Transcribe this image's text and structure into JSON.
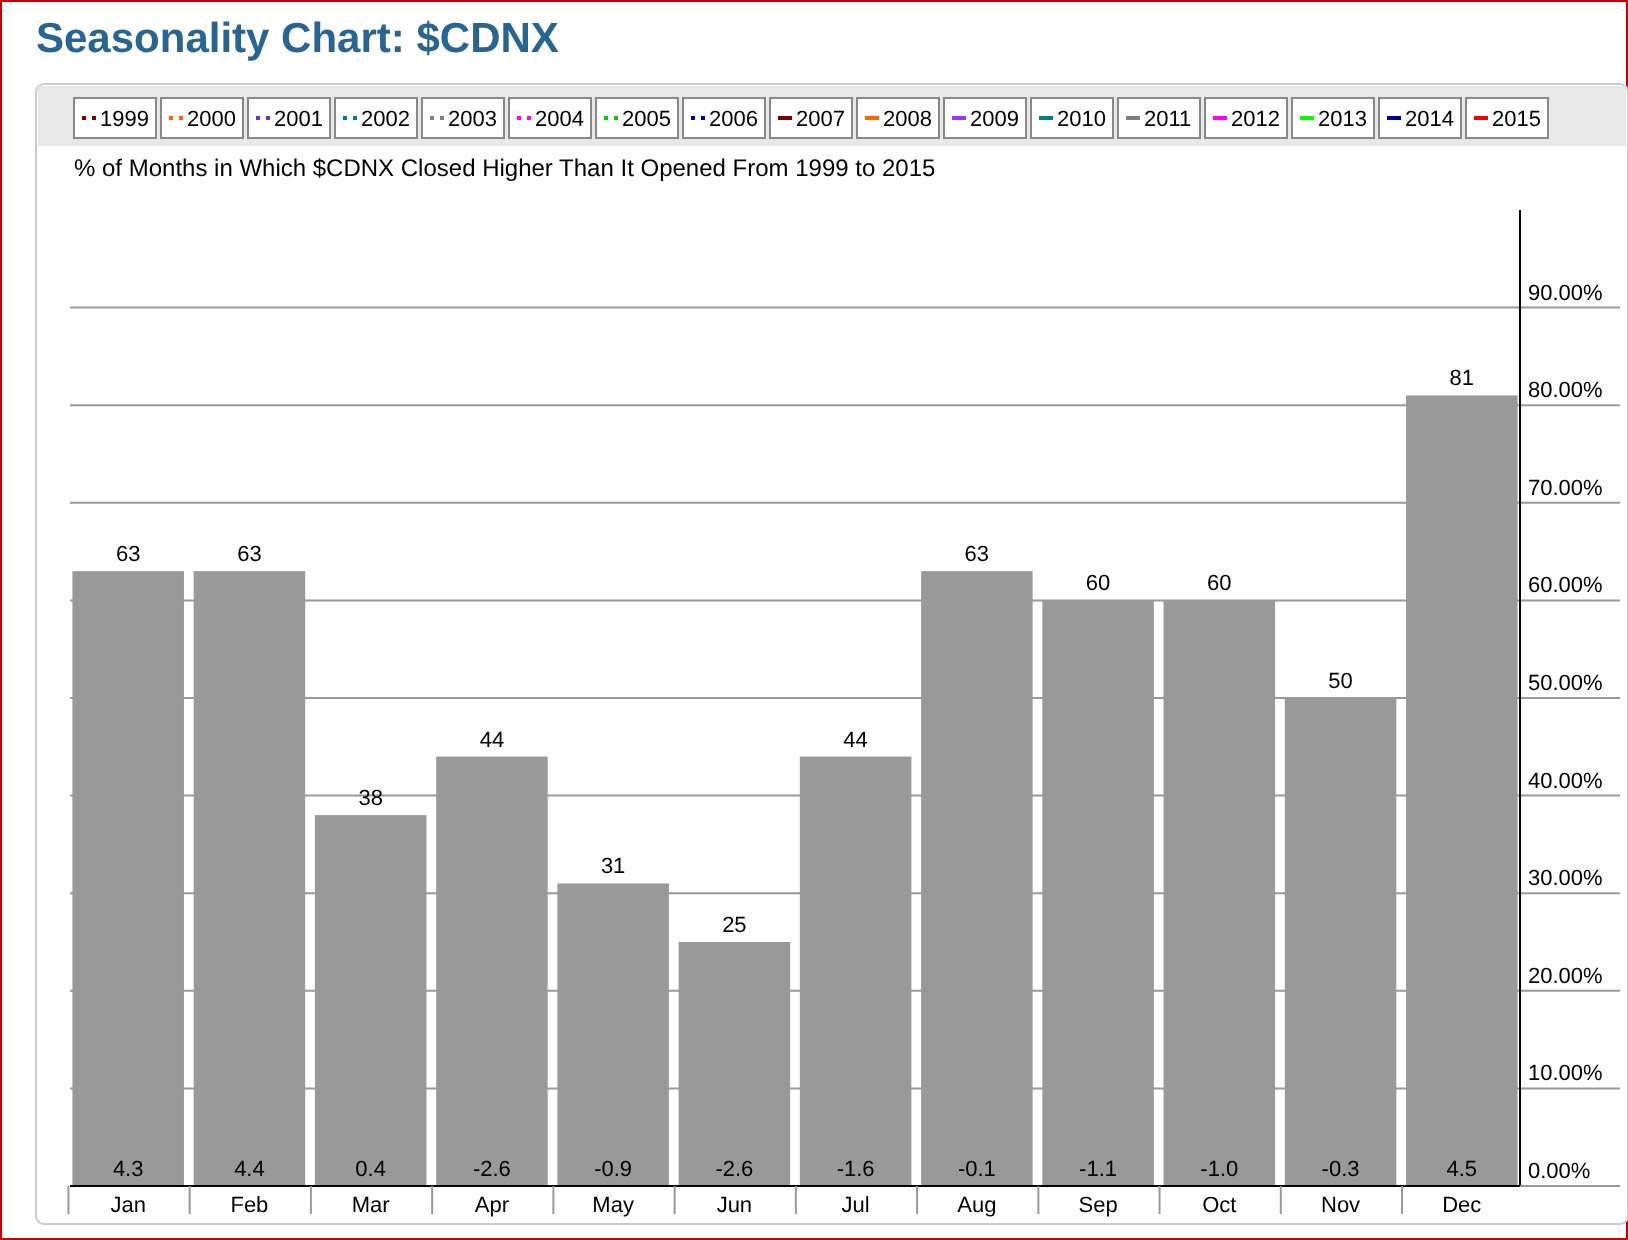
{
  "chart_data": {
    "type": "bar",
    "title": "Seasonality Chart: $CDNX",
    "subtitle": "% of Months in Which $CDNX Closed Higher Than It Opened From 1999 to 2015",
    "categories": [
      "Jan",
      "Feb",
      "Mar",
      "Apr",
      "May",
      "Jun",
      "Jul",
      "Aug",
      "Sep",
      "Oct",
      "Nov",
      "Dec"
    ],
    "series": [
      {
        "color": "#999999",
        "values": [
          63,
          63,
          38,
          44,
          31,
          25,
          44,
          63,
          60,
          60,
          50,
          81
        ]
      },
      {
        "type": "line",
        "name": "1999",
        "color": "#800000",
        "line_style": "dotted",
        "values": [
          null,
          null,
          null,
          null,
          null,
          null,
          null,
          null,
          null,
          null,
          null,
          null
        ]
      },
      {
        "type": "line",
        "name": "2000",
        "color": "#ff6600",
        "line_style": "dotted",
        "values": [
          null,
          null,
          null,
          null,
          null,
          null,
          null,
          null,
          null,
          null,
          null,
          null
        ]
      },
      {
        "type": "line",
        "name": "2001",
        "color": "#6633cc",
        "line_style": "dotted",
        "values": [
          null,
          null,
          null,
          null,
          null,
          null,
          null,
          null,
          null,
          null,
          null,
          null
        ]
      },
      {
        "type": "line",
        "name": "2002",
        "color": "#008080",
        "line_style": "dotted",
        "values": [
          null,
          null,
          null,
          null,
          null,
          null,
          null,
          null,
          null,
          null,
          null,
          null
        ]
      },
      {
        "type": "line",
        "name": "2003",
        "color": "#808080",
        "line_style": "dotted",
        "values": [
          null,
          null,
          null,
          null,
          null,
          null,
          null,
          null,
          null,
          null,
          null,
          null
        ]
      },
      {
        "type": "line",
        "name": "2004",
        "color": "#ff00ff",
        "line_style": "dotted",
        "values": [
          null,
          null,
          null,
          null,
          null,
          null,
          null,
          null,
          null,
          null,
          null,
          null
        ]
      },
      {
        "type": "line",
        "name": "2005",
        "color": "#00cc00",
        "line_style": "dotted",
        "values": [
          null,
          null,
          null,
          null,
          null,
          null,
          null,
          null,
          null,
          null,
          null,
          null
        ]
      },
      {
        "type": "line",
        "name": "2006",
        "color": "#000080",
        "line_style": "dotted",
        "values": [
          null,
          null,
          null,
          null,
          null,
          null,
          null,
          null,
          null,
          null,
          null,
          null
        ]
      },
      {
        "type": "line",
        "name": "2007",
        "color": "#800000",
        "line_style": "solid",
        "values": [
          null,
          null,
          null,
          null,
          null,
          null,
          null,
          null,
          null,
          null,
          null,
          null
        ]
      },
      {
        "type": "line",
        "name": "2008",
        "color": "#ff6600",
        "line_style": "solid",
        "values": [
          null,
          null,
          null,
          null,
          null,
          null,
          null,
          null,
          null,
          null,
          null,
          null
        ]
      },
      {
        "type": "line",
        "name": "2009",
        "color": "#9933ff",
        "line_style": "solid",
        "values": [
          null,
          null,
          null,
          null,
          null,
          null,
          null,
          null,
          null,
          null,
          null,
          null
        ]
      },
      {
        "type": "line",
        "name": "2010",
        "color": "#008080",
        "line_style": "solid",
        "values": [
          null,
          null,
          null,
          null,
          null,
          null,
          null,
          null,
          null,
          null,
          null,
          null
        ]
      },
      {
        "type": "line",
        "name": "2011",
        "color": "#808080",
        "line_style": "solid",
        "values": [
          null,
          null,
          null,
          null,
          null,
          null,
          null,
          null,
          null,
          null,
          null,
          null
        ]
      },
      {
        "type": "line",
        "name": "2012",
        "color": "#ff00ff",
        "line_style": "solid",
        "values": [
          null,
          null,
          null,
          null,
          null,
          null,
          null,
          null,
          null,
          null,
          null,
          null
        ]
      },
      {
        "type": "line",
        "name": "2013",
        "color": "#00ff00",
        "line_style": "solid",
        "values": [
          null,
          null,
          null,
          null,
          null,
          null,
          null,
          null,
          null,
          null,
          null,
          null
        ]
      },
      {
        "type": "line",
        "name": "2014",
        "color": "#000099",
        "line_style": "solid",
        "values": [
          null,
          null,
          null,
          null,
          null,
          null,
          null,
          null,
          null,
          null,
          null,
          null
        ]
      },
      {
        "type": "line",
        "name": "2015",
        "color": "#ff0000",
        "line_style": "solid",
        "values": [
          null,
          null,
          null,
          null,
          null,
          null,
          null,
          null,
          null,
          null,
          null,
          null
        ]
      }
    ],
    "data_labels": true,
    "ylim": [
      0,
      100
    ],
    "yticks": [
      {
        "value": 0,
        "label": "0.00%"
      },
      {
        "value": 10,
        "label": "10.00%"
      },
      {
        "value": 20,
        "label": "20.00%"
      },
      {
        "value": 30,
        "label": "30.00%"
      },
      {
        "value": 40,
        "label": "40.00%"
      },
      {
        "value": 50,
        "label": "50.00%"
      },
      {
        "value": 60,
        "label": "60.00%"
      },
      {
        "value": 70,
        "label": "70.00%"
      },
      {
        "value": 80,
        "label": "80.00%"
      },
      {
        "value": 90,
        "label": "90.00%"
      }
    ],
    "grid": "y",
    "legend": "top",
    "annotations": [
      {
        "text": "4.3",
        "x": "Jan",
        "y": 0
      },
      {
        "text": "4.4",
        "x": "Feb",
        "y": 0
      },
      {
        "text": "0.4",
        "x": "Mar",
        "y": 0
      },
      {
        "text": "-2.6",
        "x": "Apr",
        "y": 0
      },
      {
        "text": "-0.9",
        "x": "May",
        "y": 0
      },
      {
        "text": "-2.6",
        "x": "Jun",
        "y": 0
      },
      {
        "text": "-1.6",
        "x": "Jul",
        "y": 0
      },
      {
        "text": "-0.1",
        "x": "Aug",
        "y": 0
      },
      {
        "text": "-1.1",
        "x": "Sep",
        "y": 0
      },
      {
        "text": "-1.0",
        "x": "Oct",
        "y": 0
      },
      {
        "text": "-0.3",
        "x": "Nov",
        "y": 0
      },
      {
        "text": "4.5",
        "x": "Dec",
        "y": 0
      }
    ]
  }
}
